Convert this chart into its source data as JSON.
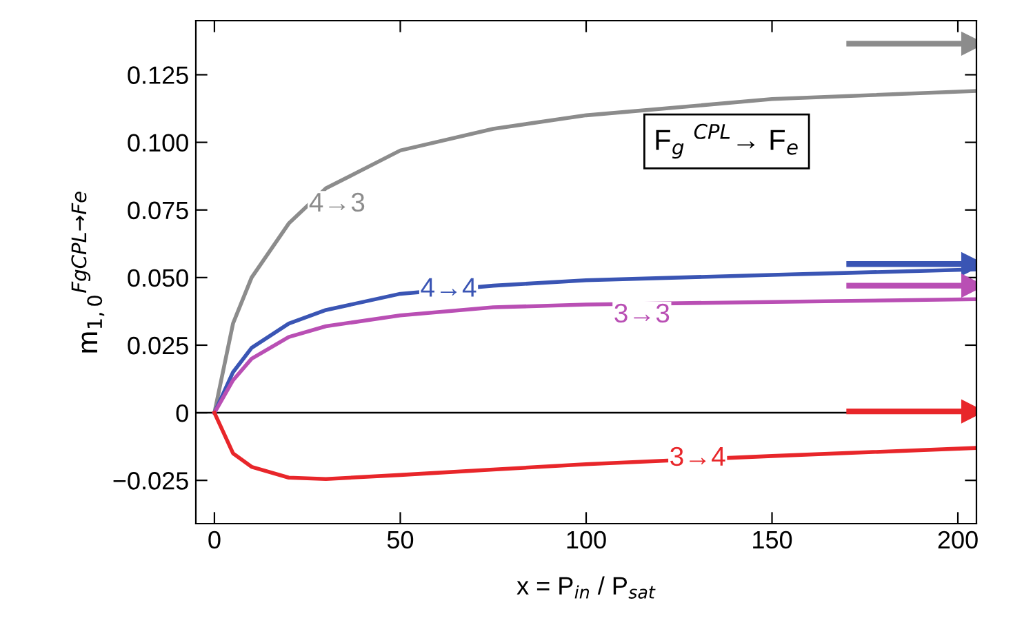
{
  "chart_data": {
    "type": "line",
    "xlabel": "x = P$_{in}$ / P$_{sat}$",
    "ylabel": "m$_{1,0}$$^{FgCPL→Fe}$",
    "xlim": [
      -5,
      205
    ],
    "ylim": [
      -0.041,
      0.145
    ],
    "xticks": [
      0,
      50,
      100,
      150,
      200
    ],
    "yticks": [
      {
        "value": -0.025,
        "label": "−0.025"
      },
      0,
      {
        "value": 0.025,
        "label": "0.025"
      },
      {
        "value": 0.05,
        "label": "0.050"
      },
      {
        "value": 0.075,
        "label": "0.075"
      },
      {
        "value": 0.1,
        "label": "0.100"
      },
      {
        "value": 0.125,
        "label": "0.125"
      }
    ],
    "grid": false,
    "legend": false,
    "series": [
      {
        "color": "#8c8c8c",
        "x": [
          0,
          5,
          10,
          20,
          30,
          50,
          75,
          100,
          150,
          205
        ],
        "values": [
          0,
          0.033,
          0.05,
          0.07,
          0.083,
          0.097,
          0.105,
          0.11,
          0.116,
          0.119
        ]
      },
      {
        "color": "#3a55b4",
        "x": [
          0,
          5,
          10,
          20,
          30,
          50,
          75,
          100,
          150,
          205
        ],
        "values": [
          0,
          0.015,
          0.024,
          0.033,
          0.038,
          0.044,
          0.047,
          0.049,
          0.051,
          0.053
        ]
      },
      {
        "color": "#b94fb4",
        "x": [
          0,
          5,
          10,
          20,
          30,
          50,
          75,
          100,
          150,
          205
        ],
        "values": [
          0,
          0.012,
          0.02,
          0.028,
          0.032,
          0.036,
          0.039,
          0.04,
          0.041,
          0.042
        ]
      },
      {
        "color": "#e8262a",
        "x": [
          0,
          5,
          10,
          20,
          30,
          50,
          75,
          100,
          150,
          205
        ],
        "values": [
          0,
          -0.015,
          -0.02,
          -0.024,
          -0.0245,
          -0.023,
          -0.021,
          -0.019,
          -0.016,
          -0.013
        ]
      },
      {
        "marker": "triangle",
        "color": "#8c8c8c",
        "x": [
          170,
          204
        ],
        "values": [
          0.1365,
          0.1365
        ]
      },
      {
        "marker": "triangle",
        "color": "#3a55b4",
        "x": [
          170,
          204
        ],
        "values": [
          0.055,
          0.055
        ]
      },
      {
        "marker": "triangle",
        "color": "#b94fb4",
        "x": [
          170,
          204
        ],
        "values": [
          0.047,
          0.047
        ]
      },
      {
        "marker": "triangle",
        "color": "#e8262a",
        "x": [
          170,
          204
        ],
        "values": [
          0.0005,
          0.0005
        ]
      }
    ],
    "ref_lines": [
      {
        "axis": "y",
        "value": 0,
        "color": "#000000"
      }
    ],
    "annotations": [
      {
        "text": "4→3",
        "x": 33,
        "y": 0.077
      },
      {
        "text": "4→4",
        "x": 63,
        "y": 0.0455
      },
      {
        "text": "3→3",
        "x": 115,
        "y": 0.036
      },
      {
        "text": "3→4",
        "x": 130,
        "y": -0.017
      },
      "F$_{g}$ $^{CPL}$→ F$_{e}$"
    ]
  }
}
